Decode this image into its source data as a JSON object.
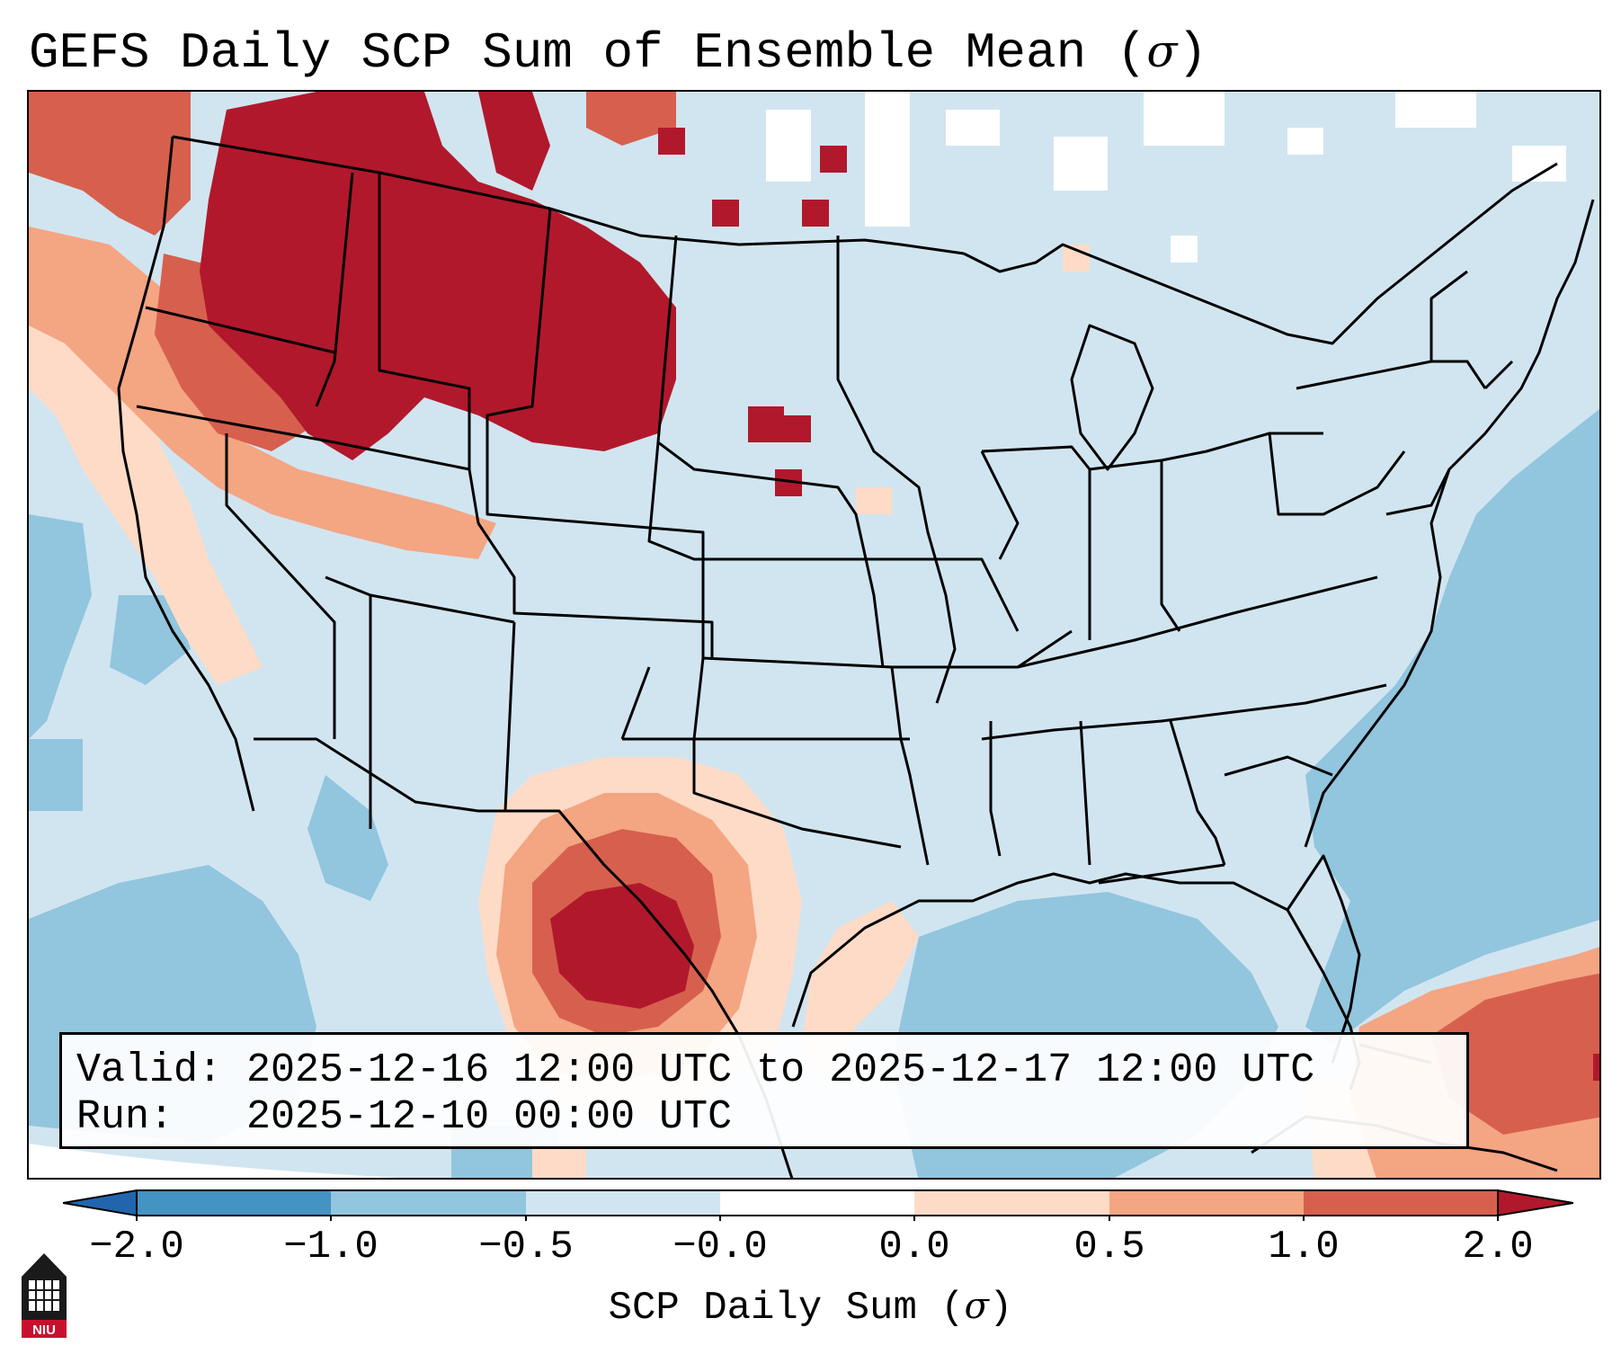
{
  "title": {
    "text": "GEFS Daily SCP Sum of Ensemble Mean (",
    "symbol": "σ",
    "close": ")"
  },
  "info_box": {
    "valid_line": "Valid: 2025-12-16 12:00 UTC to 2025-12-17 12:00 UTC",
    "run_line": "Run:   2025-12-10 00:00 UTC"
  },
  "colorbar": {
    "label_text": "SCP Daily Sum (",
    "label_symbol": "σ",
    "label_close": ")",
    "ticks": [
      "−2.0",
      "−1.0",
      "−0.5",
      "−0.0",
      "0.0",
      "0.5",
      "1.0",
      "2.0"
    ],
    "colors": {
      "below_min": "#2166ac",
      "bin_-2_-1": "#4393c3",
      "bin_-1_-0.5": "#92c5de",
      "bin_-0.5_0": "#d1e5f0",
      "bin_0_0.5": "#fddbc7",
      "bin_0.5_1": "#f4a582",
      "bin_1_2": "#d6604d",
      "above_max": "#b2182b"
    }
  },
  "logo": {
    "text": "NIU",
    "accent": "#c8102e"
  }
}
